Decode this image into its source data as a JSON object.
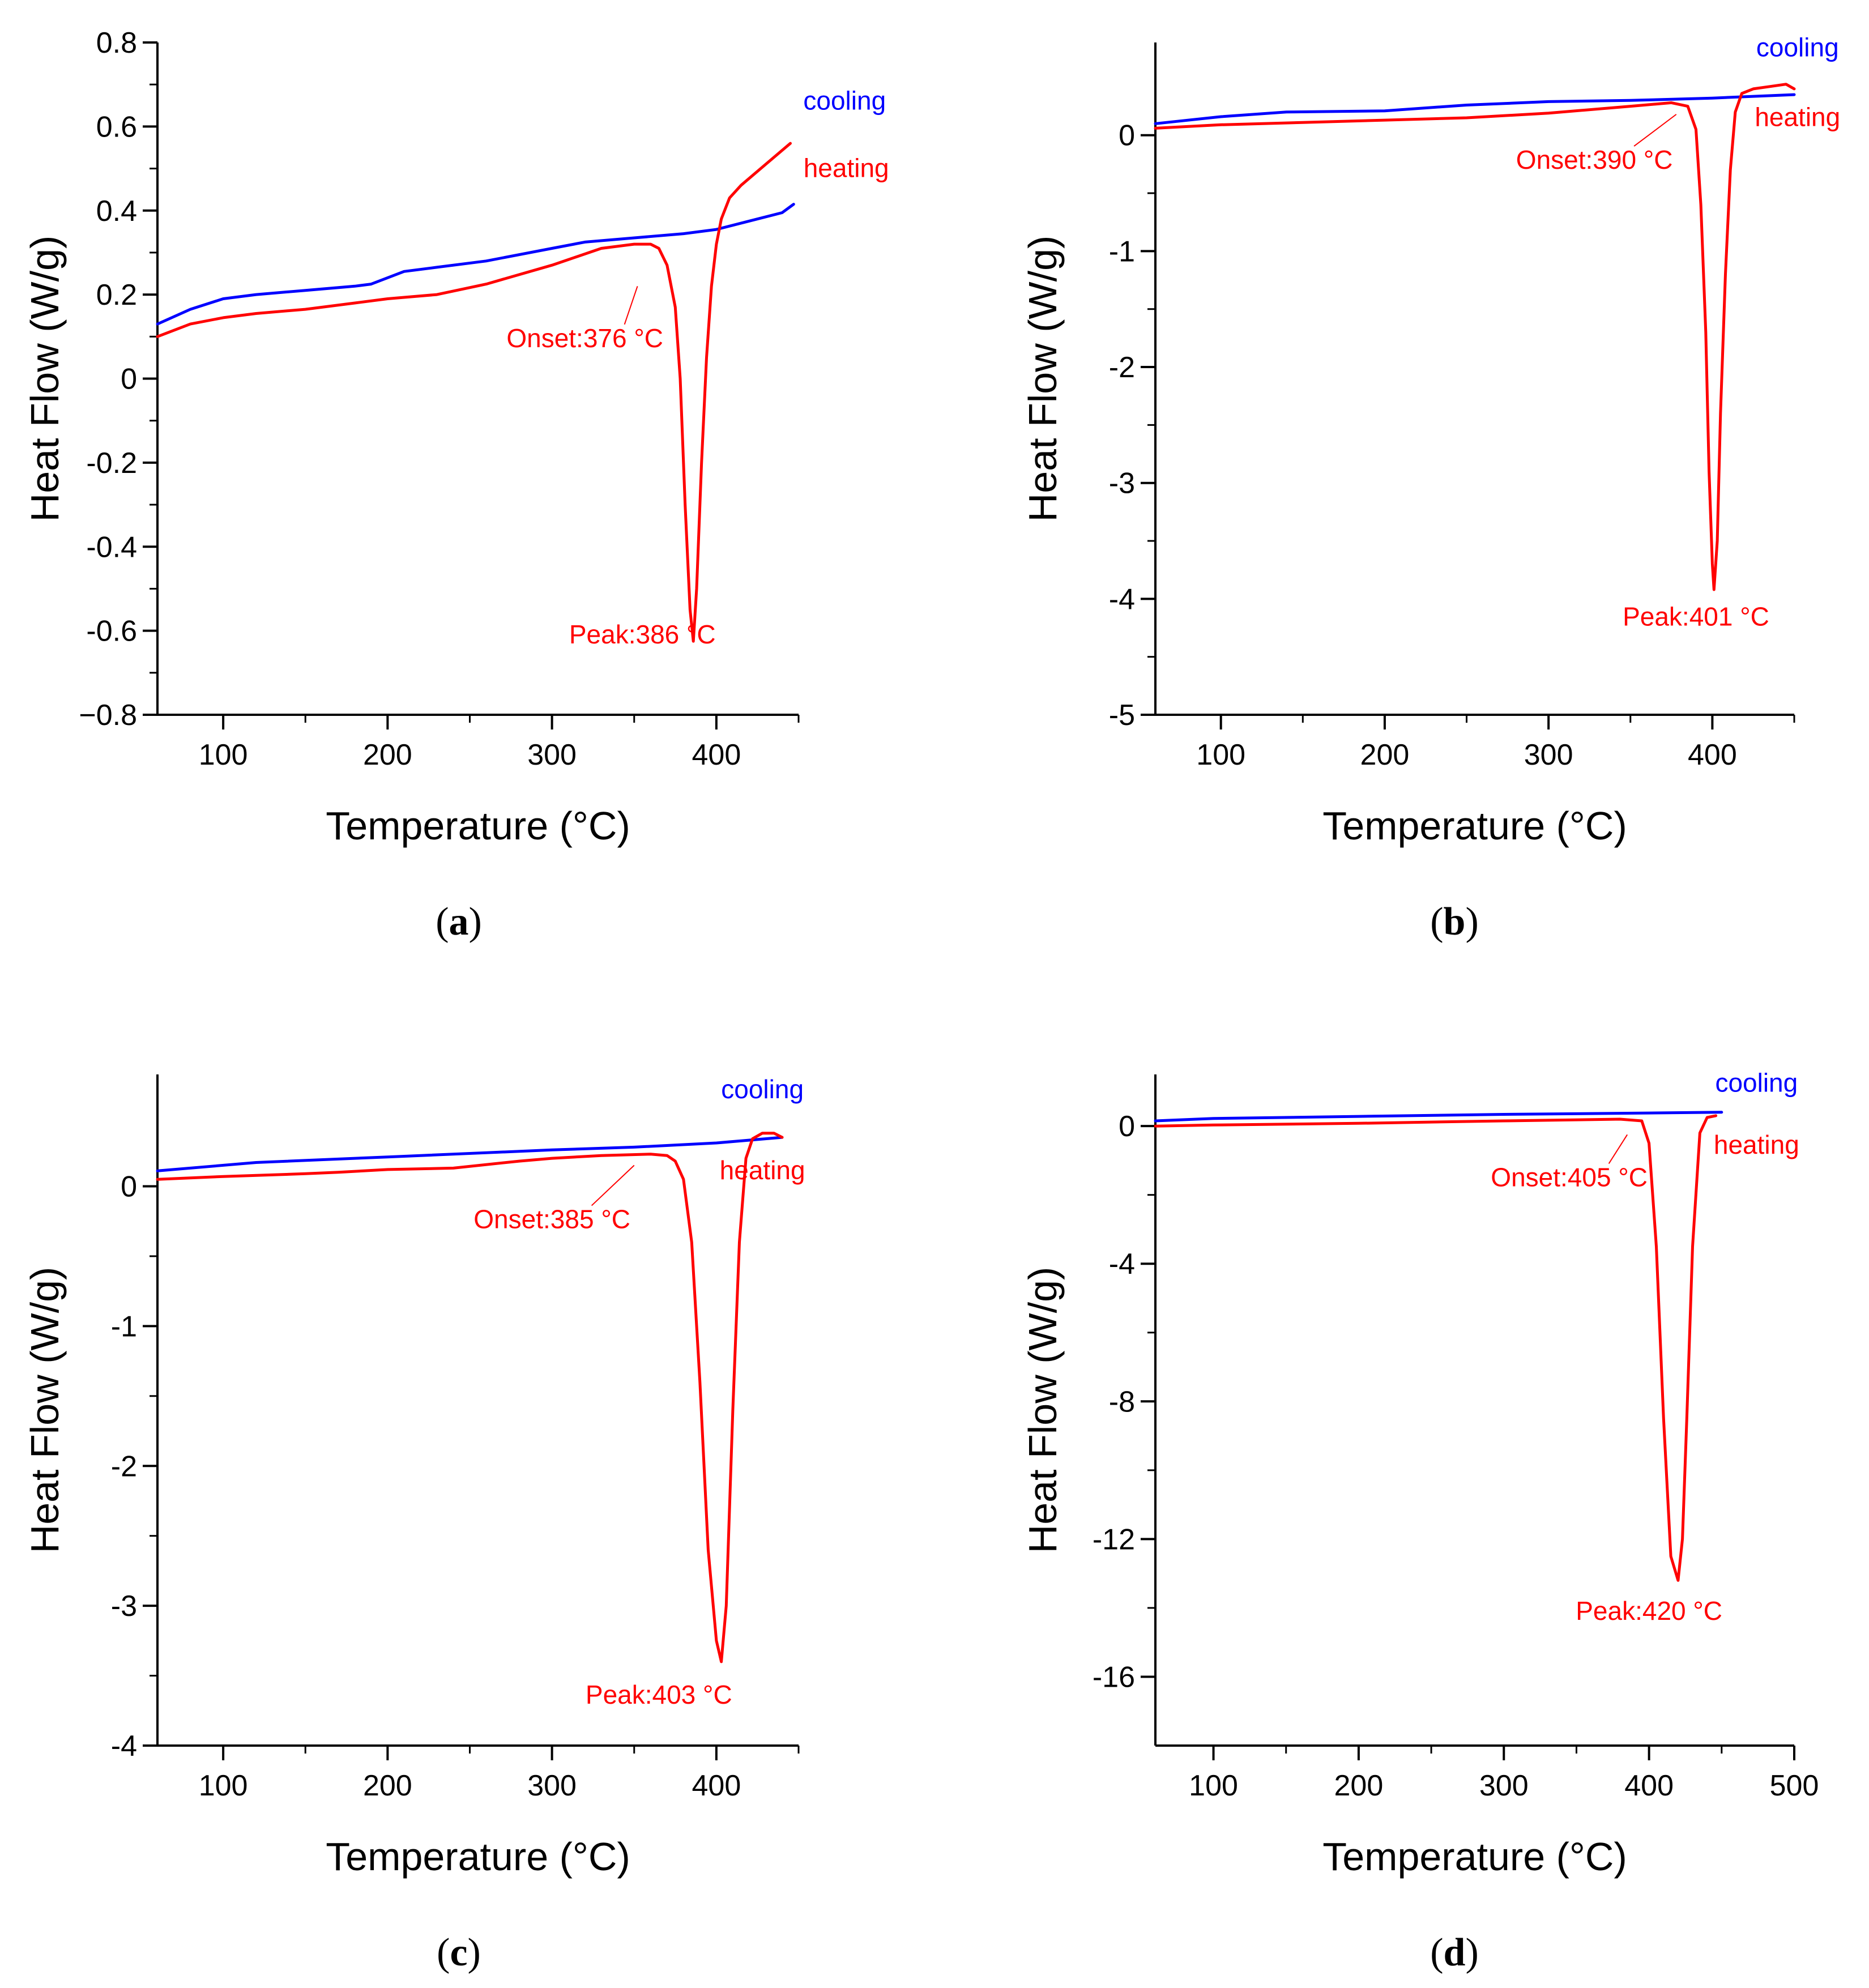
{
  "figure": {
    "colors": {
      "heating": "#ff0000",
      "cooling": "#0000ff",
      "axis": "#000000"
    }
  },
  "chart_data": [
    {
      "type": "line",
      "panel_label": "a",
      "xlabel": "Temperature (°C)",
      "ylabel": "Heat Flow (W/g)",
      "xlim": [
        60,
        450
      ],
      "ylim": [
        -0.8,
        0.8
      ],
      "xticks": [
        100,
        200,
        300,
        400
      ],
      "yticks": [
        -0.8,
        -0.6,
        -0.4,
        -0.2,
        0,
        0.2,
        0.4,
        0.6,
        0.8
      ],
      "ytick_labels": [
        "−0.8",
        "-0.6",
        "-0.4",
        "-0.2",
        "0",
        "0.2",
        "0.4",
        "0.6",
        "0.8"
      ],
      "series": [
        {
          "name": "cooling",
          "color": "#0000ff",
          "x": [
            60,
            80,
            100,
            120,
            150,
            180,
            190,
            200,
            210,
            230,
            260,
            300,
            320,
            350,
            380,
            400,
            420,
            440,
            447
          ],
          "y": [
            0.13,
            0.165,
            0.19,
            0.2,
            0.21,
            0.22,
            0.225,
            0.24,
            0.255,
            0.265,
            0.28,
            0.31,
            0.325,
            0.335,
            0.345,
            0.355,
            0.375,
            0.395,
            0.415
          ]
        },
        {
          "name": "heating",
          "color": "#ff0000",
          "x": [
            60,
            80,
            100,
            120,
            150,
            180,
            200,
            230,
            260,
            300,
            330,
            350,
            360,
            365,
            370,
            375,
            378,
            381,
            384,
            386,
            388,
            391,
            394,
            397,
            400,
            403,
            408,
            415,
            430,
            445
          ],
          "y": [
            0.1,
            0.13,
            0.145,
            0.155,
            0.165,
            0.18,
            0.19,
            0.2,
            0.225,
            0.27,
            0.31,
            0.32,
            0.32,
            0.31,
            0.27,
            0.17,
            0.0,
            -0.3,
            -0.55,
            -0.625,
            -0.5,
            -0.2,
            0.05,
            0.22,
            0.32,
            0.38,
            0.43,
            0.46,
            0.51,
            0.56
          ]
        }
      ],
      "annotations": [
        {
          "text": "cooling",
          "color": "#0000ff",
          "x": 478,
          "y": 0.64,
          "anchor": "middle"
        },
        {
          "text": "heating",
          "color": "#ff0000",
          "x": 453,
          "y": 0.48,
          "anchor": "start"
        },
        {
          "text": "Onset:376 °C",
          "color": "#ff0000",
          "x": 320,
          "y": 0.075,
          "anchor": "middle",
          "leader_to": [
            352,
            0.22
          ]
        },
        {
          "text": "Peak:386 °C",
          "color": "#ff0000",
          "x": 355,
          "y": -0.63,
          "anchor": "middle"
        }
      ]
    },
    {
      "type": "line",
      "panel_label": "b",
      "xlabel": "Temperature (°C)",
      "ylabel": "Heat Flow (W/g)",
      "xlim": [
        60,
        450
      ],
      "ylim": [
        -5,
        0.8
      ],
      "xticks": [
        100,
        200,
        300,
        400
      ],
      "yticks": [
        -5,
        -4,
        -3,
        -2,
        -1,
        0
      ],
      "ytick_labels": [
        "-5",
        "-4",
        "-3",
        "-2",
        "-1",
        "0"
      ],
      "series": [
        {
          "name": "cooling",
          "color": "#0000ff",
          "x": [
            60,
            100,
            140,
            200,
            250,
            300,
            350,
            400,
            450
          ],
          "y": [
            0.1,
            0.16,
            0.2,
            0.21,
            0.26,
            0.29,
            0.3,
            0.32,
            0.35
          ]
        },
        {
          "name": "heating",
          "color": "#ff0000",
          "x": [
            60,
            100,
            150,
            200,
            250,
            300,
            350,
            375,
            385,
            390,
            393,
            396,
            398,
            400,
            401,
            403,
            405,
            408,
            411,
            414,
            418,
            425,
            435,
            445,
            450
          ],
          "y": [
            0.06,
            0.09,
            0.11,
            0.13,
            0.15,
            0.19,
            0.25,
            0.28,
            0.25,
            0.05,
            -0.6,
            -1.7,
            -2.9,
            -3.7,
            -3.92,
            -3.5,
            -2.4,
            -1.2,
            -0.3,
            0.2,
            0.36,
            0.4,
            0.42,
            0.44,
            0.4
          ]
        }
      ],
      "annotations": [
        {
          "text": "cooling",
          "color": "#0000ff",
          "x": 452,
          "y": 0.68,
          "anchor": "middle"
        },
        {
          "text": "heating",
          "color": "#ff0000",
          "x": 452,
          "y": 0.08,
          "anchor": "middle"
        },
        {
          "text": "Onset:390 °C",
          "color": "#ff0000",
          "x": 328,
          "y": -0.29,
          "anchor": "middle",
          "leader_to": [
            378,
            0.18
          ]
        },
        {
          "text": "Peak:401  °C",
          "color": "#ff0000",
          "x": 390,
          "y": -4.23,
          "anchor": "middle"
        }
      ]
    },
    {
      "type": "line",
      "panel_label": "c",
      "xlabel": "Temperature (°C)",
      "ylabel": "Heat Flow (W/g)",
      "xlim": [
        60,
        450
      ],
      "ylim": [
        -4,
        0.8
      ],
      "xticks": [
        100,
        200,
        300,
        400
      ],
      "yticks": [
        -4,
        -3,
        -2,
        -1,
        0
      ],
      "ytick_labels": [
        "-4",
        "-3",
        "-2",
        "-1",
        "0"
      ],
      "series": [
        {
          "name": "cooling",
          "color": "#0000ff",
          "x": [
            60,
            120,
            200,
            300,
            350,
            400,
            440
          ],
          "y": [
            0.11,
            0.17,
            0.21,
            0.26,
            0.28,
            0.31,
            0.35
          ]
        },
        {
          "name": "heating",
          "color": "#ff0000",
          "x": [
            60,
            100,
            150,
            170,
            200,
            240,
            280,
            300,
            330,
            360,
            370,
            375,
            380,
            385,
            390,
            395,
            400,
            403,
            406,
            410,
            414,
            418,
            422,
            428,
            435,
            440
          ],
          "y": [
            0.05,
            0.07,
            0.09,
            0.1,
            0.12,
            0.13,
            0.18,
            0.2,
            0.22,
            0.23,
            0.22,
            0.18,
            0.05,
            -0.4,
            -1.4,
            -2.6,
            -3.25,
            -3.4,
            -3.0,
            -1.6,
            -0.4,
            0.2,
            0.34,
            0.38,
            0.38,
            0.35
          ]
        }
      ],
      "annotations": [
        {
          "text": "cooling",
          "color": "#0000ff",
          "x": 428,
          "y": 0.63,
          "anchor": "middle"
        },
        {
          "text": "heating",
          "color": "#ff0000",
          "x": 428,
          "y": 0.05,
          "anchor": "middle"
        },
        {
          "text": "Onset:385 °C",
          "color": "#ff0000",
          "x": 300,
          "y": -0.3,
          "anchor": "middle",
          "leader_to": [
            350,
            0.15
          ]
        },
        {
          "text": "Peak:403 °C",
          "color": "#ff0000",
          "x": 365,
          "y": -3.7,
          "anchor": "middle"
        }
      ]
    },
    {
      "type": "line",
      "panel_label": "d",
      "xlabel": "Temperature (°C)",
      "ylabel": "Heat Flow (W/g)",
      "xlim": [
        60,
        500
      ],
      "ylim": [
        -18,
        1.5
      ],
      "xticks": [
        100,
        200,
        300,
        400,
        500
      ],
      "yticks": [
        -16,
        -12,
        -8,
        -4,
        0
      ],
      "ytick_labels": [
        "-16",
        "-12",
        "-8",
        "-4",
        "0"
      ],
      "series": [
        {
          "name": "cooling",
          "color": "#0000ff",
          "x": [
            60,
            100,
            200,
            300,
            400,
            450
          ],
          "y": [
            0.15,
            0.22,
            0.28,
            0.34,
            0.38,
            0.4
          ]
        },
        {
          "name": "heating",
          "color": "#ff0000",
          "x": [
            60,
            100,
            200,
            300,
            380,
            395,
            400,
            405,
            410,
            415,
            420,
            423,
            426,
            430,
            435,
            440,
            446
          ],
          "y": [
            0.0,
            0.03,
            0.08,
            0.15,
            0.2,
            0.15,
            -0.5,
            -3.5,
            -8.5,
            -12.5,
            -13.2,
            -12.0,
            -8.5,
            -3.5,
            -0.2,
            0.25,
            0.3
          ]
        }
      ],
      "annotations": [
        {
          "text": "cooling",
          "color": "#0000ff",
          "x": 474,
          "y": 1.0,
          "anchor": "middle"
        },
        {
          "text": "heating",
          "color": "#ff0000",
          "x": 474,
          "y": -0.8,
          "anchor": "middle"
        },
        {
          "text": "Onset:405 °C",
          "color": "#ff0000",
          "x": 345,
          "y": -1.75,
          "anchor": "middle",
          "leader_to": [
            385,
            -0.25
          ]
        },
        {
          "text": "Peak:420 °C",
          "color": "#ff0000",
          "x": 400,
          "y": -14.35,
          "anchor": "middle"
        }
      ]
    }
  ]
}
